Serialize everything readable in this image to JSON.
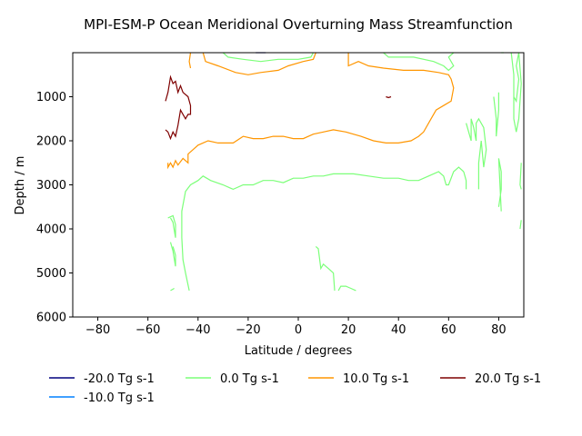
{
  "chart_data": {
    "type": "line",
    "title": "MPI-ESM-P Ocean Meridional Overturning Mass Streamfunction",
    "xlabel": "Latitude / degrees",
    "ylabel": "Depth / m",
    "xlim": [
      -90,
      90
    ],
    "ylim": [
      6000,
      0
    ],
    "y_inverted": true,
    "x_ticks": [
      -80,
      -60,
      -40,
      -20,
      0,
      20,
      40,
      60,
      80
    ],
    "x_tick_labels": [
      "−80",
      "−60",
      "−40",
      "−20",
      "0",
      "20",
      "40",
      "60",
      "80"
    ],
    "y_ticks": [
      1000,
      2000,
      3000,
      4000,
      5000,
      6000
    ],
    "y_tick_labels": [
      "1000",
      "2000",
      "3000",
      "4000",
      "5000",
      "6000"
    ],
    "grid": false,
    "legend_position": "below",
    "series": [
      {
        "name": "-20.0 Tg s-1",
        "color": "#00007f",
        "segments": [
          [
            [
              -17,
              0
            ],
            [
              -15,
              0
            ],
            [
              -13,
              0
            ]
          ]
        ]
      },
      {
        "name": "-10.0 Tg s-1",
        "color": "#0080ff",
        "segments": []
      },
      {
        "name": "0.0 Tg s-1",
        "color": "#7cff79",
        "segments": [
          [
            [
              -30,
              0
            ],
            [
              -28,
              100
            ],
            [
              -22,
              150
            ],
            [
              -15,
              200
            ],
            [
              -8,
              150
            ],
            [
              0,
              150
            ],
            [
              5,
              100
            ],
            [
              6,
              0
            ]
          ],
          [
            [
              34,
              0
            ],
            [
              36,
              100
            ],
            [
              40,
              100
            ],
            [
              46,
              100
            ],
            [
              54,
              200
            ],
            [
              58,
              300
            ],
            [
              60,
              400
            ],
            [
              62,
              300
            ],
            [
              60,
              100
            ],
            [
              62,
              0
            ]
          ],
          [
            [
              -52,
              3750
            ],
            [
              -50,
              3700
            ],
            [
              -49,
              3900
            ],
            [
              -49,
              4200
            ],
            [
              -50,
              3850
            ],
            [
              -51,
              3750
            ]
          ],
          [
            [
              -51,
              4300
            ],
            [
              -50,
              4500
            ],
            [
              -49,
              4850
            ],
            [
              -49,
              4600
            ],
            [
              -50,
              4400
            ]
          ],
          [
            [
              -51,
              5400
            ],
            [
              -49.5,
              5350
            ]
          ],
          [
            [
              -43.5,
              5400
            ],
            [
              -45,
              5000
            ],
            [
              -46,
              4700
            ],
            [
              -46.5,
              4200
            ],
            [
              -46.5,
              3600
            ],
            [
              -45,
              3150
            ],
            [
              -43,
              3000
            ],
            [
              -40,
              2900
            ],
            [
              -38,
              2800
            ],
            [
              -35,
              2900
            ],
            [
              -30,
              3000
            ],
            [
              -26,
              3100
            ],
            [
              -22,
              3000
            ],
            [
              -18,
              3000
            ],
            [
              -14,
              2900
            ],
            [
              -10,
              2900
            ],
            [
              -6,
              2950
            ],
            [
              -2,
              2850
            ],
            [
              2,
              2850
            ],
            [
              6,
              2800
            ],
            [
              10,
              2800
            ],
            [
              14,
              2750
            ],
            [
              18,
              2750
            ],
            [
              22,
              2750
            ],
            [
              28,
              2800
            ],
            [
              34,
              2850
            ],
            [
              40,
              2850
            ],
            [
              44,
              2900
            ],
            [
              48,
              2900
            ],
            [
              52,
              2800
            ],
            [
              56,
              2700
            ],
            [
              58,
              2800
            ],
            [
              59,
              3000
            ],
            [
              60,
              3000
            ],
            [
              62,
              2700
            ],
            [
              64,
              2600
            ],
            [
              66,
              2700
            ]
          ],
          [
            [
              7,
              4400
            ],
            [
              8,
              4450
            ],
            [
              9,
              4900
            ],
            [
              10,
              4800
            ],
            [
              11,
              4850
            ],
            [
              12,
              4900
            ],
            [
              14,
              5000
            ],
            [
              14.5,
              5400
            ]
          ],
          [
            [
              16,
              5400
            ],
            [
              17,
              5300
            ],
            [
              19,
              5300
            ],
            [
              21,
              5350
            ],
            [
              23,
              5400
            ]
          ],
          [
            [
              66,
              2700
            ],
            [
              67,
              2900
            ],
            [
              67,
              3100
            ]
          ],
          [
            [
              67,
              1600
            ],
            [
              68,
              1800
            ],
            [
              69,
              2000
            ],
            [
              69,
              1500
            ],
            [
              70,
              1700
            ],
            [
              71,
              2000
            ],
            [
              71,
              1600
            ],
            [
              72,
              1500
            ],
            [
              74,
              1700
            ],
            [
              75,
              2200
            ],
            [
              74,
              2600
            ],
            [
              73,
              2000
            ],
            [
              72,
              2500
            ],
            [
              72,
              3100
            ]
          ],
          [
            [
              78,
              1000
            ],
            [
              79,
              1500
            ],
            [
              79,
              1900
            ],
            [
              80,
              1300
            ],
            [
              80,
              900
            ]
          ],
          [
            [
              80,
              3500
            ],
            [
              81,
              3100
            ],
            [
              81,
              2700
            ],
            [
              80,
              2400
            ],
            [
              81,
              3600
            ]
          ],
          [
            [
              81,
              0
            ],
            [
              82,
              0
            ]
          ],
          [
            [
              85,
              0
            ],
            [
              86,
              500
            ],
            [
              86,
              1000
            ],
            [
              87,
              1100
            ],
            [
              88,
              600
            ],
            [
              87,
              300
            ],
            [
              88,
              0
            ],
            [
              89,
              700
            ],
            [
              88,
              1500
            ],
            [
              87,
              1800
            ],
            [
              86,
              1500
            ],
            [
              86,
              700
            ]
          ],
          [
            [
              89,
              2500
            ],
            [
              88.5,
              3000
            ],
            [
              89,
              3100
            ]
          ],
          [
            [
              88.5,
              4000
            ],
            [
              89,
              3800
            ]
          ]
        ]
      },
      {
        "name": "10.0 Tg s-1",
        "color": "#ff9600",
        "segments": [
          [
            [
              -43,
              0
            ],
            [
              -43.5,
              200
            ],
            [
              -43,
              350
            ]
          ],
          [
            [
              -38,
              0
            ],
            [
              -37,
              200
            ],
            [
              -32,
              300
            ],
            [
              -25,
              450
            ],
            [
              -20,
              500
            ],
            [
              -15,
              450
            ],
            [
              -8,
              400
            ],
            [
              -4,
              300
            ],
            [
              2,
              200
            ],
            [
              6,
              150
            ],
            [
              7,
              0
            ]
          ],
          [
            [
              20,
              0
            ],
            [
              20,
              300
            ],
            [
              24,
              200
            ],
            [
              28,
              300
            ],
            [
              34,
              350
            ],
            [
              42,
              400
            ],
            [
              50,
              400
            ],
            [
              56,
              450
            ],
            [
              60,
              500
            ],
            [
              61,
              600
            ],
            [
              62,
              800
            ],
            [
              61,
              1100
            ],
            [
              58,
              1200
            ],
            [
              55,
              1300
            ],
            [
              53,
              1500
            ],
            [
              50,
              1800
            ],
            [
              48,
              1900
            ],
            [
              45,
              2000
            ],
            [
              40,
              2050
            ],
            [
              35,
              2050
            ],
            [
              30,
              2000
            ],
            [
              25,
              1900
            ],
            [
              22,
              1850
            ],
            [
              19,
              1800
            ],
            [
              14,
              1750
            ],
            [
              10,
              1800
            ],
            [
              6,
              1850
            ],
            [
              2,
              1950
            ],
            [
              -2,
              1950
            ],
            [
              -6,
              1900
            ],
            [
              -10,
              1900
            ],
            [
              -14,
              1950
            ],
            [
              -18,
              1950
            ],
            [
              -22,
              1900
            ],
            [
              -26,
              2050
            ],
            [
              -32,
              2050
            ],
            [
              -36,
              2000
            ],
            [
              -40,
              2100
            ],
            [
              -42,
              2200
            ],
            [
              -44,
              2300
            ],
            [
              -44,
              2500
            ],
            [
              -46,
              2400
            ],
            [
              -48,
              2550
            ],
            [
              -49,
              2450
            ],
            [
              -50,
              2600
            ],
            [
              -51,
              2500
            ],
            [
              -52,
              2600
            ],
            [
              -52,
              2500
            ]
          ]
        ]
      },
      {
        "name": "20.0 Tg s-1",
        "color": "#7f0000",
        "segments": [
          [
            [
              -53,
              1100
            ],
            [
              -52,
              900
            ],
            [
              -51,
              550
            ],
            [
              -50,
              700
            ],
            [
              -49,
              650
            ],
            [
              -48,
              900
            ],
            [
              -47,
              750
            ],
            [
              -46,
              900
            ],
            [
              -44,
              1000
            ],
            [
              -43,
              1200
            ],
            [
              -43,
              1400
            ],
            [
              -44,
              1400
            ],
            [
              -45,
              1500
            ],
            [
              -46,
              1400
            ],
            [
              -47,
              1300
            ],
            [
              -48,
              1650
            ],
            [
              -49,
              1900
            ],
            [
              -50,
              1800
            ],
            [
              -51,
              1950
            ],
            [
              -52,
              1800
            ],
            [
              -53,
              1750
            ]
          ],
          [
            [
              35,
              1000
            ],
            [
              36,
              1020
            ],
            [
              37,
              1000
            ]
          ]
        ]
      }
    ]
  }
}
